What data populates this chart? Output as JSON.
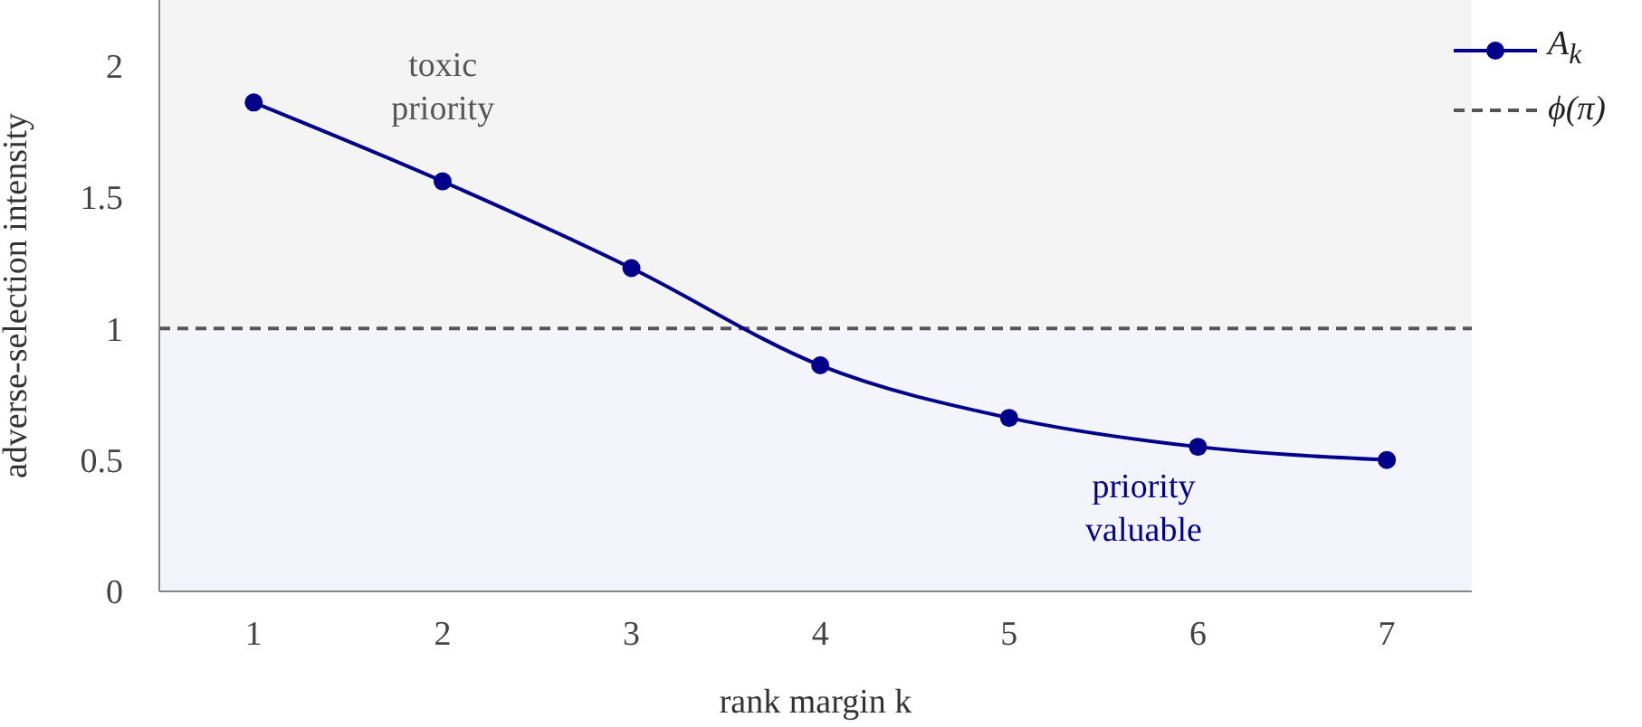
{
  "chart_data": {
    "type": "line",
    "xlabel": "rank margin k",
    "ylabel": "adverse-selection intensity",
    "x": [
      1,
      2,
      3,
      4,
      5,
      6,
      7
    ],
    "series": [
      {
        "name": "A$_{k}$",
        "color": "#00008b",
        "values": [
          1.86,
          1.56,
          1.23,
          0.86,
          0.66,
          0.55,
          0.5
        ]
      }
    ],
    "xlim": [
      0.5,
      7.45
    ],
    "xticks": [
      1,
      2,
      3,
      4,
      5,
      6,
      7
    ],
    "ylim": [
      0,
      2.25
    ],
    "yticks": [
      0,
      0.5,
      1,
      1.5,
      2
    ],
    "ref_lines": [
      {
        "axis": "y",
        "value": 1,
        "label": "ϕ(π)",
        "color": "#555555",
        "line_style": "dashed"
      }
    ],
    "bands": [
      {
        "axis": "y",
        "from": 0,
        "to": 1,
        "color": "#f4f4fc",
        "label": "priority valuable"
      },
      {
        "axis": "y",
        "from": 1,
        "to": 2.25,
        "color": "#f4f4f4",
        "label": "toxic priority"
      }
    ],
    "grid": false,
    "legend": "top right",
    "marker": "circle",
    "line_style": "solid"
  }
}
